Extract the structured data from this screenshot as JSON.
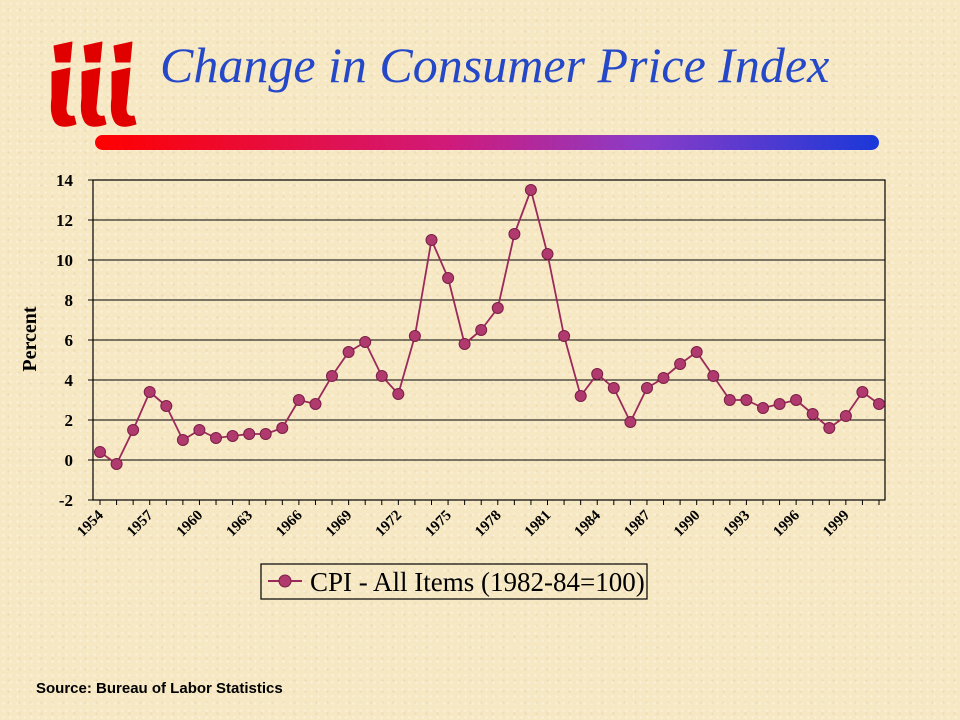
{
  "slide": {
    "title": "Change in Consumer Price Index",
    "source": "Source:  Bureau of Labor Statistics",
    "logo_icon": "iii-logo",
    "colors": {
      "title": "#2448c8",
      "logo": "#e00000",
      "series": "#9b2a5a",
      "marker": "#b03a6e"
    }
  },
  "chart_data": {
    "type": "line",
    "title": "",
    "xlabel": "",
    "ylabel": "Percent",
    "ylim": [
      -2,
      14
    ],
    "yticks": [
      -2,
      0,
      2,
      4,
      6,
      8,
      10,
      12,
      14
    ],
    "grid": true,
    "legend_position": "bottom-center",
    "x": [
      1954,
      1955,
      1956,
      1957,
      1958,
      1959,
      1960,
      1961,
      1962,
      1963,
      1964,
      1965,
      1966,
      1967,
      1968,
      1969,
      1970,
      1971,
      1972,
      1973,
      1974,
      1975,
      1976,
      1977,
      1978,
      1979,
      1980,
      1981,
      1982,
      1983,
      1984,
      1985,
      1986,
      1987,
      1988,
      1989,
      1990,
      1991,
      1992,
      1993,
      1994,
      1995,
      1996,
      1997,
      1998,
      1999,
      2000,
      2001
    ],
    "xtick_labels": [
      "1954",
      "1957",
      "1960",
      "1963",
      "1966",
      "1969",
      "1972",
      "1975",
      "1978",
      "1981",
      "1984",
      "1987",
      "1990",
      "1993",
      "1996",
      "1999"
    ],
    "series": [
      {
        "name": "CPI - All Items (1982-84=100)",
        "values": [
          0.4,
          -0.2,
          1.5,
          3.4,
          2.7,
          1.0,
          1.5,
          1.1,
          1.2,
          1.3,
          1.3,
          1.6,
          3.0,
          2.8,
          4.2,
          5.4,
          5.9,
          4.2,
          3.3,
          6.2,
          11.0,
          9.1,
          5.8,
          6.5,
          7.6,
          11.3,
          13.5,
          10.3,
          6.2,
          3.2,
          4.3,
          3.6,
          1.9,
          3.6,
          4.1,
          4.8,
          5.4,
          4.2,
          3.0,
          3.0,
          2.6,
          2.8,
          3.0,
          2.3,
          1.6,
          2.2,
          3.4,
          2.8
        ]
      }
    ]
  }
}
